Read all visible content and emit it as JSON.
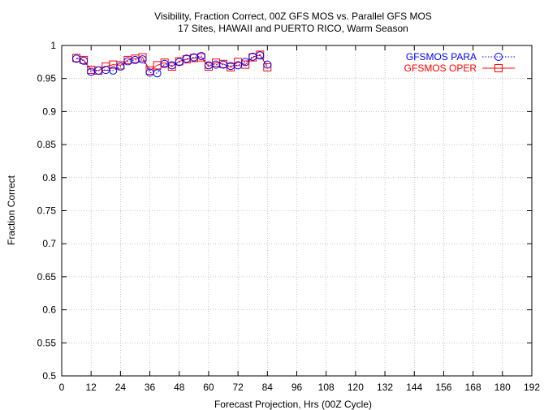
{
  "chart_data": {
    "type": "line",
    "title": "Visibility, Fraction Correct, 00Z GFS MOS vs. Parallel GFS MOS",
    "subtitle": "17 Sites, HAWAII and PUERTO RICO, Warm Season",
    "xlabel": "Forecast Projection, Hrs (00Z Cycle)",
    "ylabel": "Fraction Correct",
    "xlim": [
      0,
      192
    ],
    "ylim": [
      0.5,
      1.0
    ],
    "xticks": [
      "0",
      "12",
      "24",
      "36",
      "48",
      "60",
      "72",
      "84",
      "96",
      "108",
      "120",
      "132",
      "144",
      "156",
      "168",
      "180",
      "192"
    ],
    "yticks": [
      "0.5",
      "0.55",
      "0.6",
      "0.65",
      "0.7",
      "0.75",
      "0.8",
      "0.85",
      "0.9",
      "0.95",
      "1"
    ],
    "grid": true,
    "legend_position": "top-right",
    "x": [
      6,
      9,
      12,
      15,
      18,
      21,
      24,
      27,
      30,
      33,
      36,
      39,
      42,
      45,
      48,
      51,
      54,
      57,
      60,
      63,
      66,
      69,
      72,
      75,
      78,
      81,
      84
    ],
    "series": [
      {
        "name": "GFSMOS PARA",
        "color": "#0000ff",
        "marker": "circle",
        "dash": "dotted",
        "values": [
          0.98,
          0.977,
          0.96,
          0.962,
          0.963,
          0.962,
          0.968,
          0.976,
          0.978,
          0.979,
          0.959,
          0.958,
          0.972,
          0.97,
          0.975,
          0.98,
          0.982,
          0.984,
          0.97,
          0.971,
          0.971,
          0.969,
          0.97,
          0.975,
          0.983,
          0.985,
          0.971
        ]
      },
      {
        "name": "GFSMOS OPER",
        "color": "#ff0000",
        "marker": "square",
        "dash": "solid",
        "values": [
          0.981,
          0.978,
          0.963,
          0.962,
          0.968,
          0.971,
          0.97,
          0.978,
          0.98,
          0.982,
          0.962,
          0.97,
          0.974,
          0.968,
          0.976,
          0.979,
          0.981,
          0.982,
          0.968,
          0.974,
          0.972,
          0.967,
          0.975,
          0.971,
          0.982,
          0.986,
          0.967
        ]
      }
    ]
  }
}
